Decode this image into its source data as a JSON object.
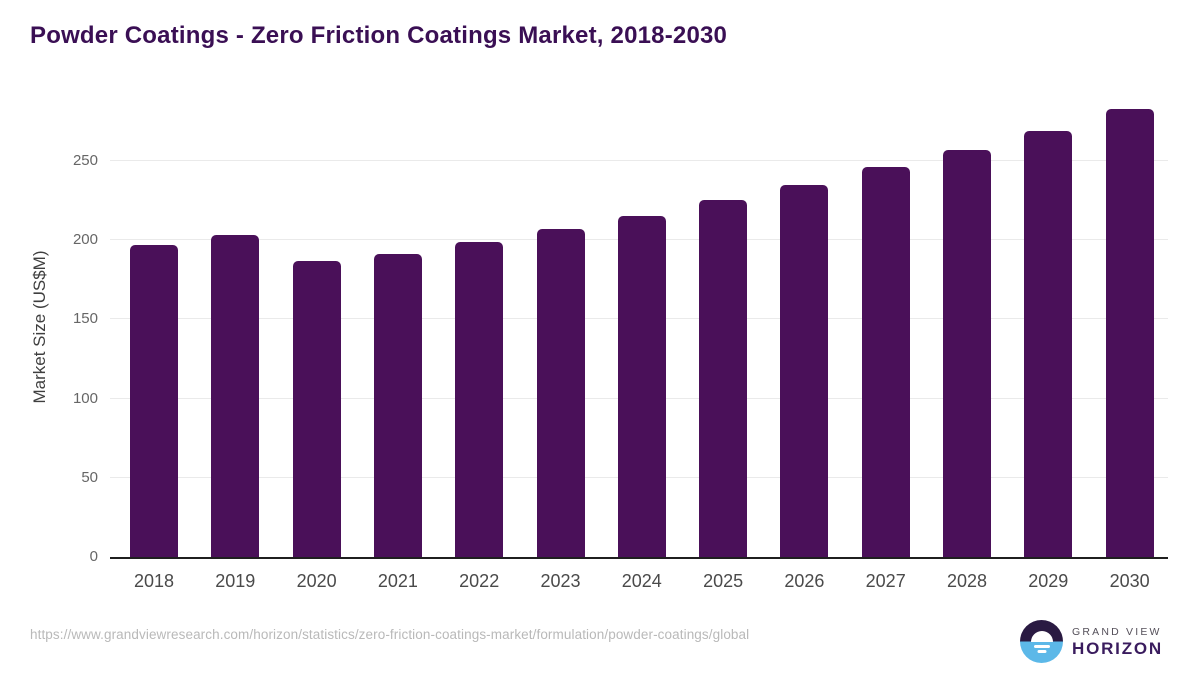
{
  "title": "Powder Coatings - Zero Friction Coatings Market, 2018-2030",
  "chart_data": {
    "type": "bar",
    "title": "Powder Coatings - Zero Friction Coatings Market, 2018-2030",
    "categories": [
      "2018",
      "2019",
      "2020",
      "2021",
      "2022",
      "2023",
      "2024",
      "2025",
      "2026",
      "2027",
      "2028",
      "2029",
      "2030"
    ],
    "values": [
      197,
      203,
      187,
      191,
      199,
      207,
      215,
      225,
      235,
      246,
      257,
      269,
      283
    ],
    "xlabel": "",
    "ylabel": "Market Size (US$M)",
    "ylim": [
      0,
      292
    ],
    "yticks": [
      0,
      50,
      100,
      150,
      200,
      250
    ],
    "grid": "horizontal",
    "legend": "none",
    "bar_color": "#4a1059"
  },
  "colors": {
    "title_text": "#3a0f54",
    "bar": "#4a1059",
    "axis_line": "#1f1f1f",
    "gridline": "#eaeaea",
    "ytick_text": "#666666",
    "xtick_text": "#4a4a4a",
    "footer_text": "#b9b9b9",
    "logo_purple": "#2a1a42",
    "logo_blue": "#5cb8e8"
  },
  "footer": {
    "source_url": "https://www.grandviewresearch.com/horizon/statistics/zero-friction-coatings-market/formulation/powder-coatings/global",
    "brand": {
      "line1": "GRAND VIEW",
      "line2": "HORIZON"
    }
  }
}
